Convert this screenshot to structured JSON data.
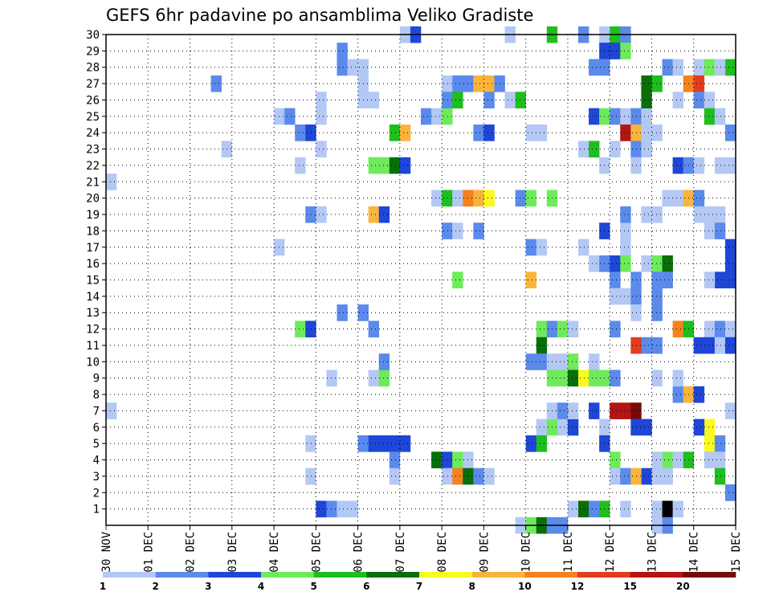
{
  "chart_data": {
    "type": "heatmap",
    "title": "GEFS 6hr padavine po ansamblima Veliko Gradiste",
    "x_ticks": [
      "30 NOV",
      "01 DEC",
      "02 DEC",
      "03 DEC",
      "04 DEC",
      "05 DEC",
      "06 DEC",
      "07 DEC",
      "08 DEC",
      "09 DEC",
      "10 DEC",
      "11 DEC",
      "12 DEC",
      "13 DEC",
      "14 DEC",
      "15 DEC"
    ],
    "y_ticks": [
      "1",
      "2",
      "3",
      "4",
      "5",
      "6",
      "7",
      "8",
      "9",
      "10",
      "11",
      "12",
      "13",
      "14",
      "15",
      "16",
      "17",
      "18",
      "19",
      "20",
      "21",
      "22",
      "23",
      "24",
      "25",
      "26",
      "27",
      "28",
      "29",
      "30"
    ],
    "xlim": [
      0,
      60
    ],
    "ylim": [
      0,
      30
    ],
    "grid": true,
    "legend": {
      "labels": [
        "1",
        "2",
        "3",
        "4",
        "5",
        "6",
        "7",
        "8",
        "10",
        "12",
        "15",
        "20"
      ],
      "colors": [
        "#b4c8f5",
        "#5a8aeb",
        "#1e46d7",
        "#6eeb5a",
        "#1ebe1e",
        "#0a6e0a",
        "#fafa1e",
        "#fab43c",
        "#f5821e",
        "#e13c1e",
        "#b41414",
        "#780a0a"
      ]
    },
    "cells": [
      [
        0,
        21,
        1
      ],
      [
        0,
        7,
        1
      ],
      [
        10,
        27,
        2
      ],
      [
        11,
        23,
        1
      ],
      [
        16,
        25,
        1
      ],
      [
        17,
        25,
        2
      ],
      [
        16,
        17,
        1
      ],
      [
        18,
        24,
        2
      ],
      [
        19,
        24,
        3
      ],
      [
        18,
        22,
        1
      ],
      [
        19,
        19,
        2
      ],
      [
        20,
        19,
        1
      ],
      [
        19,
        5,
        1
      ],
      [
        19,
        3,
        1
      ],
      [
        18,
        12,
        4
      ],
      [
        19,
        12,
        3
      ],
      [
        20,
        26,
        1
      ],
      [
        20,
        25,
        1
      ],
      [
        20,
        23,
        1
      ],
      [
        20,
        1,
        3
      ],
      [
        21,
        1,
        2
      ],
      [
        22,
        1,
        1
      ],
      [
        23,
        1,
        1
      ],
      [
        21,
        9,
        1
      ],
      [
        22,
        29,
        2
      ],
      [
        22,
        28,
        2
      ],
      [
        22,
        13,
        2
      ],
      [
        23,
        28,
        1
      ],
      [
        24,
        28,
        1
      ],
      [
        24,
        27,
        1
      ],
      [
        24,
        26,
        1
      ],
      [
        25,
        26,
        1
      ],
      [
        25,
        19,
        8
      ],
      [
        26,
        19,
        3
      ],
      [
        24,
        13,
        2
      ],
      [
        25,
        12,
        2
      ],
      [
        24,
        5,
        2
      ],
      [
        25,
        5,
        3
      ],
      [
        26,
        5,
        3
      ],
      [
        27,
        5,
        3
      ],
      [
        28,
        5,
        3
      ],
      [
        25,
        9,
        1
      ],
      [
        26,
        9,
        4
      ],
      [
        26,
        10,
        2
      ],
      [
        27,
        4,
        2
      ],
      [
        27,
        3,
        1
      ],
      [
        25,
        22,
        4
      ],
      [
        26,
        22,
        4
      ],
      [
        27,
        22,
        6
      ],
      [
        28,
        22,
        3
      ],
      [
        27,
        24,
        5
      ],
      [
        28,
        24,
        8
      ],
      [
        28,
        30,
        1
      ],
      [
        29,
        30,
        3
      ],
      [
        30,
        25,
        2
      ],
      [
        31,
        25,
        1
      ],
      [
        31,
        20,
        1
      ],
      [
        32,
        20,
        5
      ],
      [
        32,
        25,
        4
      ],
      [
        32,
        27,
        1
      ],
      [
        33,
        27,
        2
      ],
      [
        34,
        27,
        2
      ],
      [
        35,
        27,
        8
      ],
      [
        36,
        27,
        8
      ],
      [
        37,
        27,
        2
      ],
      [
        32,
        26,
        2
      ],
      [
        33,
        26,
        5
      ],
      [
        36,
        26,
        2
      ],
      [
        38,
        26,
        1
      ],
      [
        39,
        26,
        5
      ],
      [
        33,
        20,
        1
      ],
      [
        34,
        20,
        9
      ],
      [
        35,
        20,
        8
      ],
      [
        36,
        20,
        7
      ],
      [
        32,
        18,
        2
      ],
      [
        33,
        18,
        1
      ],
      [
        35,
        18,
        2
      ],
      [
        33,
        15,
        4
      ],
      [
        31,
        4,
        6
      ],
      [
        32,
        4,
        3
      ],
      [
        33,
        4,
        4
      ],
      [
        34,
        4,
        1
      ],
      [
        32,
        3,
        1
      ],
      [
        33,
        3,
        9
      ],
      [
        34,
        3,
        6
      ],
      [
        35,
        3,
        2
      ],
      [
        36,
        3,
        1
      ],
      [
        35,
        24,
        2
      ],
      [
        36,
        24,
        3
      ],
      [
        38,
        30,
        1
      ],
      [
        39,
        20,
        2
      ],
      [
        40,
        20,
        4
      ],
      [
        42,
        20,
        4
      ],
      [
        40,
        24,
        1
      ],
      [
        41,
        24,
        1
      ],
      [
        40,
        17,
        2
      ],
      [
        41,
        17,
        1
      ],
      [
        40,
        15,
        8
      ],
      [
        41,
        12,
        4
      ],
      [
        42,
        12,
        2
      ],
      [
        43,
        12,
        4
      ],
      [
        44,
        12,
        1
      ],
      [
        41,
        11,
        6
      ],
      [
        40,
        10,
        2
      ],
      [
        41,
        10,
        2
      ],
      [
        42,
        10,
        1
      ],
      [
        43,
        10,
        1
      ],
      [
        44,
        10,
        4
      ],
      [
        46,
        10,
        1
      ],
      [
        42,
        9,
        4
      ],
      [
        43,
        9,
        4
      ],
      [
        44,
        9,
        6
      ],
      [
        45,
        9,
        7
      ],
      [
        46,
        9,
        4
      ],
      [
        47,
        9,
        4
      ],
      [
        48,
        9,
        2
      ],
      [
        41,
        6,
        1
      ],
      [
        42,
        6,
        4
      ],
      [
        43,
        6,
        1
      ],
      [
        44,
        6,
        3
      ],
      [
        42,
        7,
        1
      ],
      [
        43,
        7,
        2
      ],
      [
        44,
        7,
        1
      ],
      [
        40,
        5,
        3
      ],
      [
        41,
        5,
        5
      ],
      [
        39,
        0,
        1
      ],
      [
        40,
        0,
        4
      ],
      [
        41,
        0,
        6
      ],
      [
        42,
        0,
        2
      ],
      [
        43,
        0,
        2
      ],
      [
        44,
        1,
        1
      ],
      [
        45,
        1,
        6
      ],
      [
        46,
        1,
        2
      ],
      [
        47,
        1,
        5
      ],
      [
        49,
        1,
        1
      ],
      [
        42,
        30,
        5
      ],
      [
        45,
        30,
        2
      ],
      [
        47,
        30,
        1
      ],
      [
        48,
        30,
        5
      ],
      [
        49,
        30,
        2
      ],
      [
        47,
        29,
        3
      ],
      [
        48,
        29,
        3
      ],
      [
        49,
        29,
        4
      ],
      [
        46,
        28,
        2
      ],
      [
        47,
        28,
        2
      ],
      [
        46,
        25,
        3
      ],
      [
        47,
        25,
        4
      ],
      [
        48,
        25,
        2
      ],
      [
        49,
        25,
        1
      ],
      [
        50,
        25,
        2
      ],
      [
        51,
        25,
        1
      ],
      [
        47,
        22,
        1
      ],
      [
        45,
        23,
        1
      ],
      [
        46,
        23,
        5
      ],
      [
        48,
        23,
        1
      ],
      [
        46,
        16,
        1
      ],
      [
        45,
        17,
        1
      ],
      [
        47,
        18,
        3
      ],
      [
        49,
        18,
        1
      ],
      [
        49,
        17,
        1
      ],
      [
        48,
        16,
        3
      ],
      [
        47,
        16,
        2
      ],
      [
        48,
        15,
        2
      ],
      [
        48,
        14,
        1
      ],
      [
        49,
        14,
        1
      ],
      [
        50,
        14,
        2
      ],
      [
        48,
        12,
        2
      ],
      [
        46,
        7,
        3
      ],
      [
        48,
        7,
        11
      ],
      [
        49,
        7,
        11
      ],
      [
        50,
        7,
        12
      ],
      [
        47,
        6,
        1
      ],
      [
        47,
        5,
        3
      ],
      [
        48,
        4,
        4
      ],
      [
        48,
        3,
        1
      ],
      [
        49,
        3,
        2
      ],
      [
        49,
        24,
        11
      ],
      [
        50,
        24,
        8
      ],
      [
        51,
        24,
        1
      ],
      [
        50,
        23,
        2
      ],
      [
        50,
        22,
        1
      ],
      [
        51,
        27,
        6
      ],
      [
        52,
        27,
        5
      ],
      [
        51,
        26,
        6
      ],
      [
        52,
        16,
        4
      ],
      [
        53,
        16,
        6
      ],
      [
        52,
        15,
        2
      ],
      [
        53,
        15,
        2
      ],
      [
        51,
        16,
        1
      ],
      [
        50,
        15,
        2
      ],
      [
        52,
        14,
        2
      ],
      [
        52,
        13,
        2
      ],
      [
        50,
        13,
        1
      ],
      [
        51,
        11,
        2
      ],
      [
        52,
        11,
        2
      ],
      [
        50,
        11,
        10
      ],
      [
        49,
        16,
        4
      ],
      [
        49,
        19,
        2
      ],
      [
        51,
        19,
        1
      ],
      [
        52,
        19,
        1
      ],
      [
        53,
        20,
        1
      ],
      [
        53,
        4,
        4
      ],
      [
        52,
        4,
        1
      ],
      [
        51,
        3,
        3
      ],
      [
        50,
        3,
        8
      ],
      [
        52,
        3,
        1
      ],
      [
        53,
        3,
        1
      ],
      [
        50,
        6,
        3
      ],
      [
        51,
        6,
        3
      ],
      [
        52,
        1,
        1
      ],
      [
        53,
        1,
        13
      ],
      [
        54,
        1,
        1
      ],
      [
        52,
        0,
        1
      ],
      [
        53,
        0,
        2
      ],
      [
        51,
        23,
        1
      ],
      [
        52,
        24,
        1
      ],
      [
        53,
        28,
        2
      ],
      [
        54,
        28,
        1
      ],
      [
        56,
        28,
        1
      ],
      [
        57,
        28,
        4
      ],
      [
        55,
        27,
        9
      ],
      [
        56,
        27,
        10
      ],
      [
        54,
        26,
        1
      ],
      [
        56,
        26,
        2
      ],
      [
        57,
        26,
        1
      ],
      [
        57,
        25,
        5
      ],
      [
        58,
        25,
        1
      ],
      [
        54,
        22,
        3
      ],
      [
        55,
        22,
        2
      ],
      [
        56,
        22,
        1
      ],
      [
        58,
        22,
        1
      ],
      [
        54,
        20,
        1
      ],
      [
        55,
        20,
        8
      ],
      [
        56,
        20,
        2
      ],
      [
        56,
        19,
        1
      ],
      [
        57,
        19,
        1
      ],
      [
        58,
        19,
        1
      ],
      [
        57,
        18,
        1
      ],
      [
        58,
        18,
        2
      ],
      [
        59,
        17,
        3
      ],
      [
        59,
        16,
        3
      ],
      [
        58,
        15,
        3
      ],
      [
        59,
        15,
        3
      ],
      [
        57,
        15,
        1
      ],
      [
        54,
        12,
        9
      ],
      [
        55,
        12,
        5
      ],
      [
        57,
        12,
        1
      ],
      [
        58,
        12,
        2
      ],
      [
        59,
        12,
        1
      ],
      [
        56,
        11,
        3
      ],
      [
        57,
        11,
        3
      ],
      [
        58,
        11,
        1
      ],
      [
        59,
        11,
        3
      ],
      [
        54,
        8,
        2
      ],
      [
        55,
        8,
        8
      ],
      [
        56,
        8,
        3
      ],
      [
        57,
        6,
        7
      ],
      [
        57,
        5,
        7
      ],
      [
        56,
        6,
        3
      ],
      [
        58,
        5,
        2
      ],
      [
        54,
        4,
        1
      ],
      [
        55,
        4,
        5
      ],
      [
        57,
        4,
        1
      ],
      [
        58,
        4,
        1
      ],
      [
        58,
        3,
        5
      ],
      [
        59,
        2,
        2
      ],
      [
        59,
        24,
        2
      ],
      [
        59,
        22,
        1
      ],
      [
        59,
        7,
        1
      ],
      [
        52,
        9,
        1
      ],
      [
        54,
        9,
        1
      ],
      [
        59,
        28,
        5
      ],
      [
        58,
        28,
        1
      ]
    ]
  }
}
